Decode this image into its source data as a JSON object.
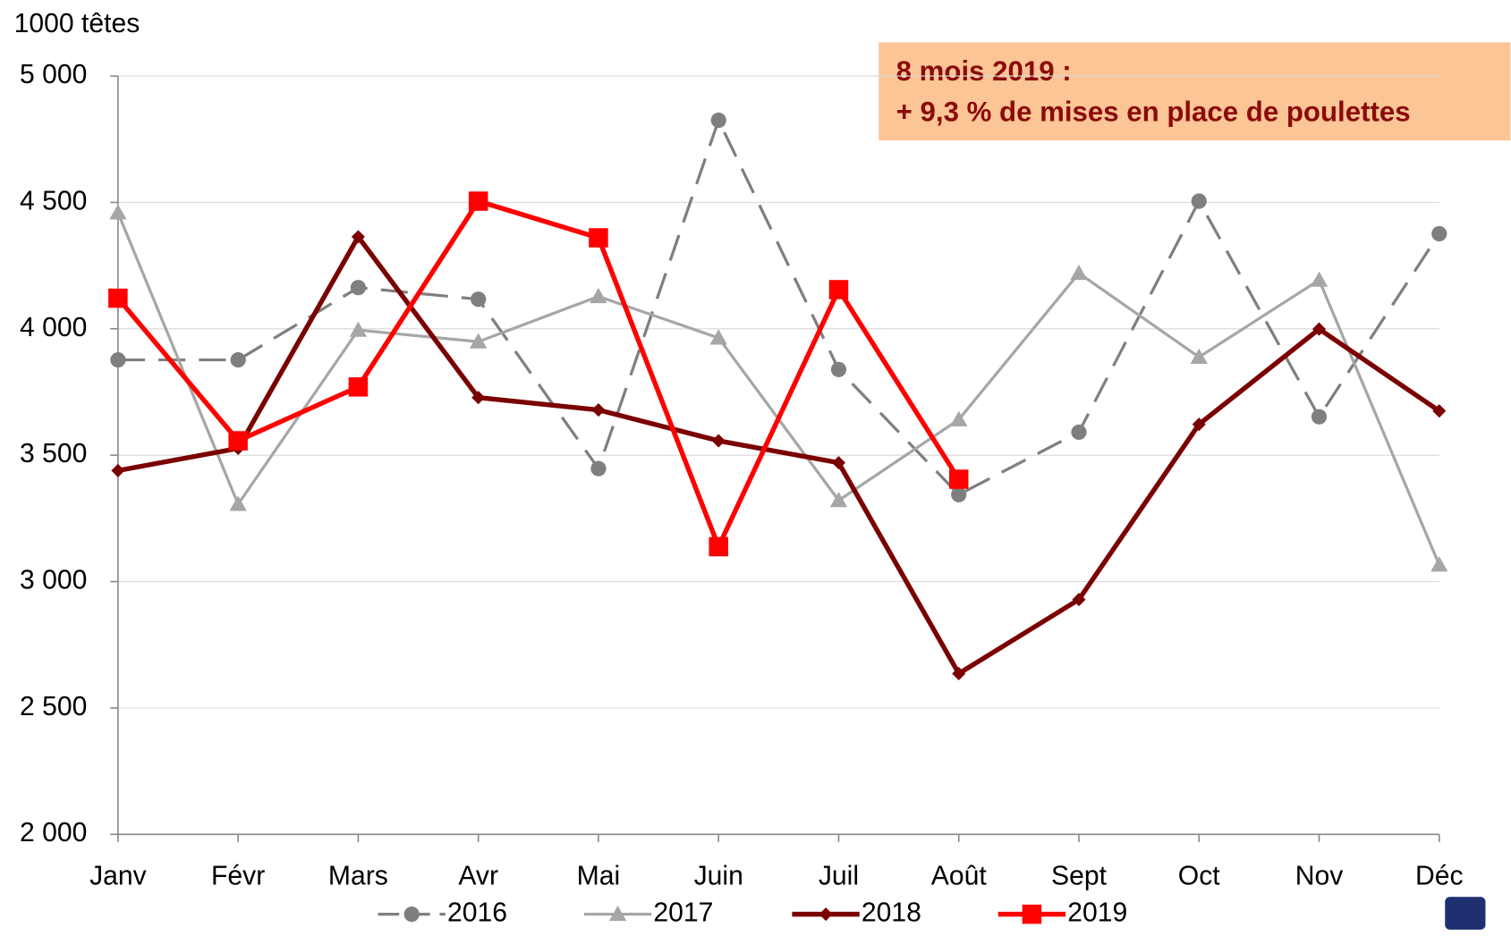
{
  "chart_data": {
    "type": "line",
    "y_axis_label": "1000 têtes",
    "annotation": [
      "8 mois 2019 :",
      "+ 9,3 % de mises en place de poulettes"
    ],
    "categories": [
      "Janv",
      "Févr",
      "Mars",
      "Avr",
      "Mai",
      "Juin",
      "Juil",
      "Août",
      "Sept",
      "Oct",
      "Nov",
      "Déc"
    ],
    "series": [
      {
        "name": "2016",
        "color": "#7f7f7f",
        "marker": "circle",
        "dash": true,
        "width": 3,
        "values": [
          3877,
          3877,
          4163,
          4117,
          3447,
          4825,
          3839,
          3344,
          3591,
          4505,
          3652,
          4376
        ]
      },
      {
        "name": "2017",
        "color": "#a6a6a6",
        "marker": "triangle",
        "dash": false,
        "width": 3,
        "values": [
          4459,
          3306,
          3995,
          3949,
          4128,
          3964,
          3321,
          3641,
          4220,
          3888,
          4193,
          3066
        ]
      },
      {
        "name": "2018",
        "color": "#7b0000",
        "marker": "diamond",
        "dash": false,
        "width": 5,
        "values": [
          3439,
          3527,
          4364,
          3728,
          3679,
          3557,
          3470,
          2636,
          2929,
          3622,
          3999,
          3675
        ]
      },
      {
        "name": "2019",
        "color": "#ff0000",
        "marker": "square",
        "dash": false,
        "width": 5,
        "values": [
          4121,
          3557,
          3770,
          4505,
          4360,
          3138,
          4155,
          3405,
          null,
          null,
          null,
          null
        ]
      }
    ],
    "ylim": [
      2000,
      5000
    ],
    "yticks": [
      {
        "value": 2000,
        "label": "2 000"
      },
      {
        "value": 2500,
        "label": "2 500"
      },
      {
        "value": 3000,
        "label": "3 000"
      },
      {
        "value": 3500,
        "label": "3 500"
      },
      {
        "value": 4000,
        "label": "4 000"
      },
      {
        "value": 4500,
        "label": "4 500"
      },
      {
        "value": 5000,
        "label": "5 000"
      }
    ],
    "grid": true
  }
}
